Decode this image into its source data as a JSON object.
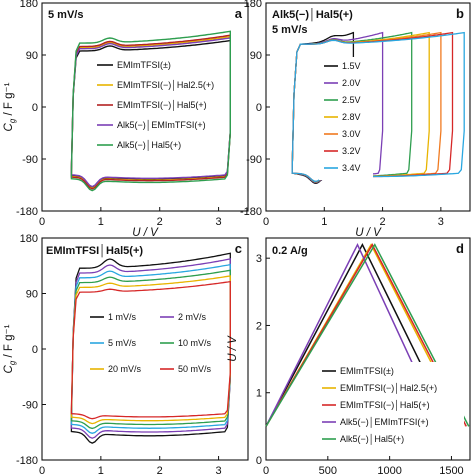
{
  "chart_data": [
    {
      "panel": "a",
      "type": "line",
      "title": "5 mV/s",
      "xlabel": "U / V",
      "ylabel": "C_g / F g⁻¹",
      "xlim": [
        0,
        3.5
      ],
      "ylim": [
        -180,
        180
      ],
      "xticks": [
        "0",
        "1",
        "2",
        "3"
      ],
      "yticks": [
        "180",
        "90",
        "0",
        "-90",
        "-180"
      ],
      "legend_position": "center",
      "series": [
        {
          "name": "EMImTFSI(±)",
          "color": "#111111",
          "upper": [
            [
              0.5,
              -100
            ],
            [
              0.6,
              95
            ],
            [
              0.9,
              100
            ],
            [
              2.0,
              110
            ],
            [
              3.0,
              128
            ],
            [
              3.2,
              120
            ]
          ],
          "lower": [
            [
              3.2,
              -60
            ],
            [
              3.0,
              -118
            ],
            [
              2.0,
              -122
            ],
            [
              1.0,
              -125
            ],
            [
              0.5,
              -110
            ]
          ]
        },
        {
          "name": "EMImTFSI(−)│Hal2.5(+)",
          "color": "#e8b400",
          "upper": [
            [
              0.5,
              -100
            ],
            [
              0.6,
              100
            ],
            [
              0.9,
              106
            ],
            [
              2.0,
              115
            ],
            [
              3.0,
              132
            ],
            [
              3.2,
              124
            ]
          ],
          "lower": [
            [
              3.2,
              -60
            ],
            [
              3.0,
              -120
            ],
            [
              2.0,
              -124
            ],
            [
              1.0,
              -126
            ],
            [
              0.5,
              -112
            ]
          ]
        },
        {
          "name": "EMImTFSI(−)│Hal5(+)",
          "color": "#b22222",
          "upper": [
            [
              0.5,
              -100
            ],
            [
              0.6,
              102
            ],
            [
              0.9,
              108
            ],
            [
              2.0,
              116
            ],
            [
              3.0,
              133
            ],
            [
              3.2,
              126
            ]
          ],
          "lower": [
            [
              3.2,
              -60
            ],
            [
              3.0,
              -121
            ],
            [
              2.0,
              -125
            ],
            [
              1.0,
              -127
            ],
            [
              0.5,
              -113
            ]
          ]
        },
        {
          "name": "Alk5(−)│EMImTFSI(+)",
          "color": "#7b3fb5",
          "upper": [
            [
              0.5,
              -100
            ],
            [
              0.6,
              98
            ],
            [
              0.9,
              104
            ],
            [
              2.0,
              112
            ],
            [
              3.0,
              126
            ],
            [
              3.2,
              118
            ]
          ],
          "lower": [
            [
              3.2,
              -60
            ],
            [
              3.0,
              -117
            ],
            [
              2.0,
              -121
            ],
            [
              1.0,
              -124
            ],
            [
              0.5,
              -109
            ]
          ]
        },
        {
          "name": "Alk5(−)│Hal5(+)",
          "color": "#2e9e4f",
          "upper": [
            [
              0.5,
              -100
            ],
            [
              0.6,
              110
            ],
            [
              0.9,
              114
            ],
            [
              2.0,
              121
            ],
            [
              3.0,
              138
            ],
            [
              3.2,
              130
            ]
          ],
          "lower": [
            [
              3.2,
              -60
            ],
            [
              3.0,
              -124
            ],
            [
              2.0,
              -128
            ],
            [
              1.0,
              -130
            ],
            [
              0.5,
              -115
            ]
          ]
        }
      ]
    },
    {
      "panel": "b",
      "type": "line",
      "title": "Alk5(−)│Hal5(+)",
      "subtitle": "5 mV/s",
      "xlabel": "U / V",
      "ylabel": "",
      "xlim": [
        0,
        3.5
      ],
      "ylim": [
        -180,
        180
      ],
      "xticks": [
        "0",
        "1",
        "2",
        "3"
      ],
      "yticks": [
        "180",
        "90",
        "0",
        "-90",
        "-180"
      ],
      "legend_position": "center-left",
      "series": [
        {
          "name": "1.5V",
          "color": "#111111",
          "vmax": 1.5
        },
        {
          "name": "2.0V",
          "color": "#7b3fb5",
          "vmax": 2.0
        },
        {
          "name": "2.5V",
          "color": "#2e9e4f",
          "vmax": 2.5
        },
        {
          "name": "2.8V",
          "color": "#e8b400",
          "vmax": 2.8
        },
        {
          "name": "3.0V",
          "color": "#f07a20",
          "vmax": 3.0
        },
        {
          "name": "3.2V",
          "color": "#d62828",
          "vmax": 3.2
        },
        {
          "name": "3.4V",
          "color": "#2aa7e0",
          "vmax": 3.4
        }
      ]
    },
    {
      "panel": "c",
      "type": "line",
      "title": "EMImTFSI│Hal5(+)",
      "xlabel": "U / V",
      "ylabel": "C_g / F g⁻¹",
      "xlim": [
        0,
        3.5
      ],
      "ylim": [
        -180,
        180
      ],
      "xticks": [
        "0",
        "1",
        "2",
        "3"
      ],
      "yticks": [
        "180",
        "90",
        "0",
        "-90",
        "-180"
      ],
      "legend_position": "center",
      "series": [
        {
          "name": "1 mV/s",
          "color": "#111111",
          "rank": 0
        },
        {
          "name": "2 mV/s",
          "color": "#7b3fb5",
          "rank": 1
        },
        {
          "name": "5 mV/s",
          "color": "#2aa7e0",
          "rank": 2
        },
        {
          "name": "10 mV/s",
          "color": "#2e9e4f",
          "rank": 3
        },
        {
          "name": "20 mV/s",
          "color": "#e8b400",
          "rank": 4
        },
        {
          "name": "50 mV/s",
          "color": "#d62828",
          "rank": 5
        }
      ]
    },
    {
      "panel": "d",
      "type": "line",
      "title": "0.2 A/g",
      "xlabel": "t / s",
      "ylabel": "U / V",
      "xlim": [
        0,
        1650
      ],
      "ylim": [
        0,
        3.3
      ],
      "xticks": [
        "0",
        "500",
        "1000",
        "1500"
      ],
      "yticks": [
        "0",
        "1",
        "2",
        "3"
      ],
      "legend_position": "bottom-right",
      "series": [
        {
          "name": "EMImTFSI(±)",
          "color": "#111111",
          "points": [
            [
              0,
              0.5
            ],
            [
              780,
              3.2
            ],
            [
              1500,
              0.5
            ]
          ]
        },
        {
          "name": "EMImTFSI(−)│Hal2.5(+)",
          "color": "#e8b400",
          "points": [
            [
              0,
              0.5
            ],
            [
              850,
              3.2
            ],
            [
              1600,
              0.5
            ]
          ]
        },
        {
          "name": "EMImTFSI(−)│Hal5(+)",
          "color": "#d62828",
          "points": [
            [
              0,
              0.5
            ],
            [
              860,
              3.2
            ],
            [
              1620,
              0.5
            ]
          ]
        },
        {
          "name": "Alk5(−)│EMImTFSI(+)",
          "color": "#7b3fb5",
          "points": [
            [
              0,
              0.5
            ],
            [
              740,
              3.2
            ],
            [
              1420,
              0.5
            ]
          ]
        },
        {
          "name": "Alk5(−)│Hal5(+)",
          "color": "#2e9e4f",
          "points": [
            [
              0,
              0.5
            ],
            [
              880,
              3.2
            ],
            [
              1640,
              0.5
            ]
          ]
        }
      ]
    }
  ]
}
